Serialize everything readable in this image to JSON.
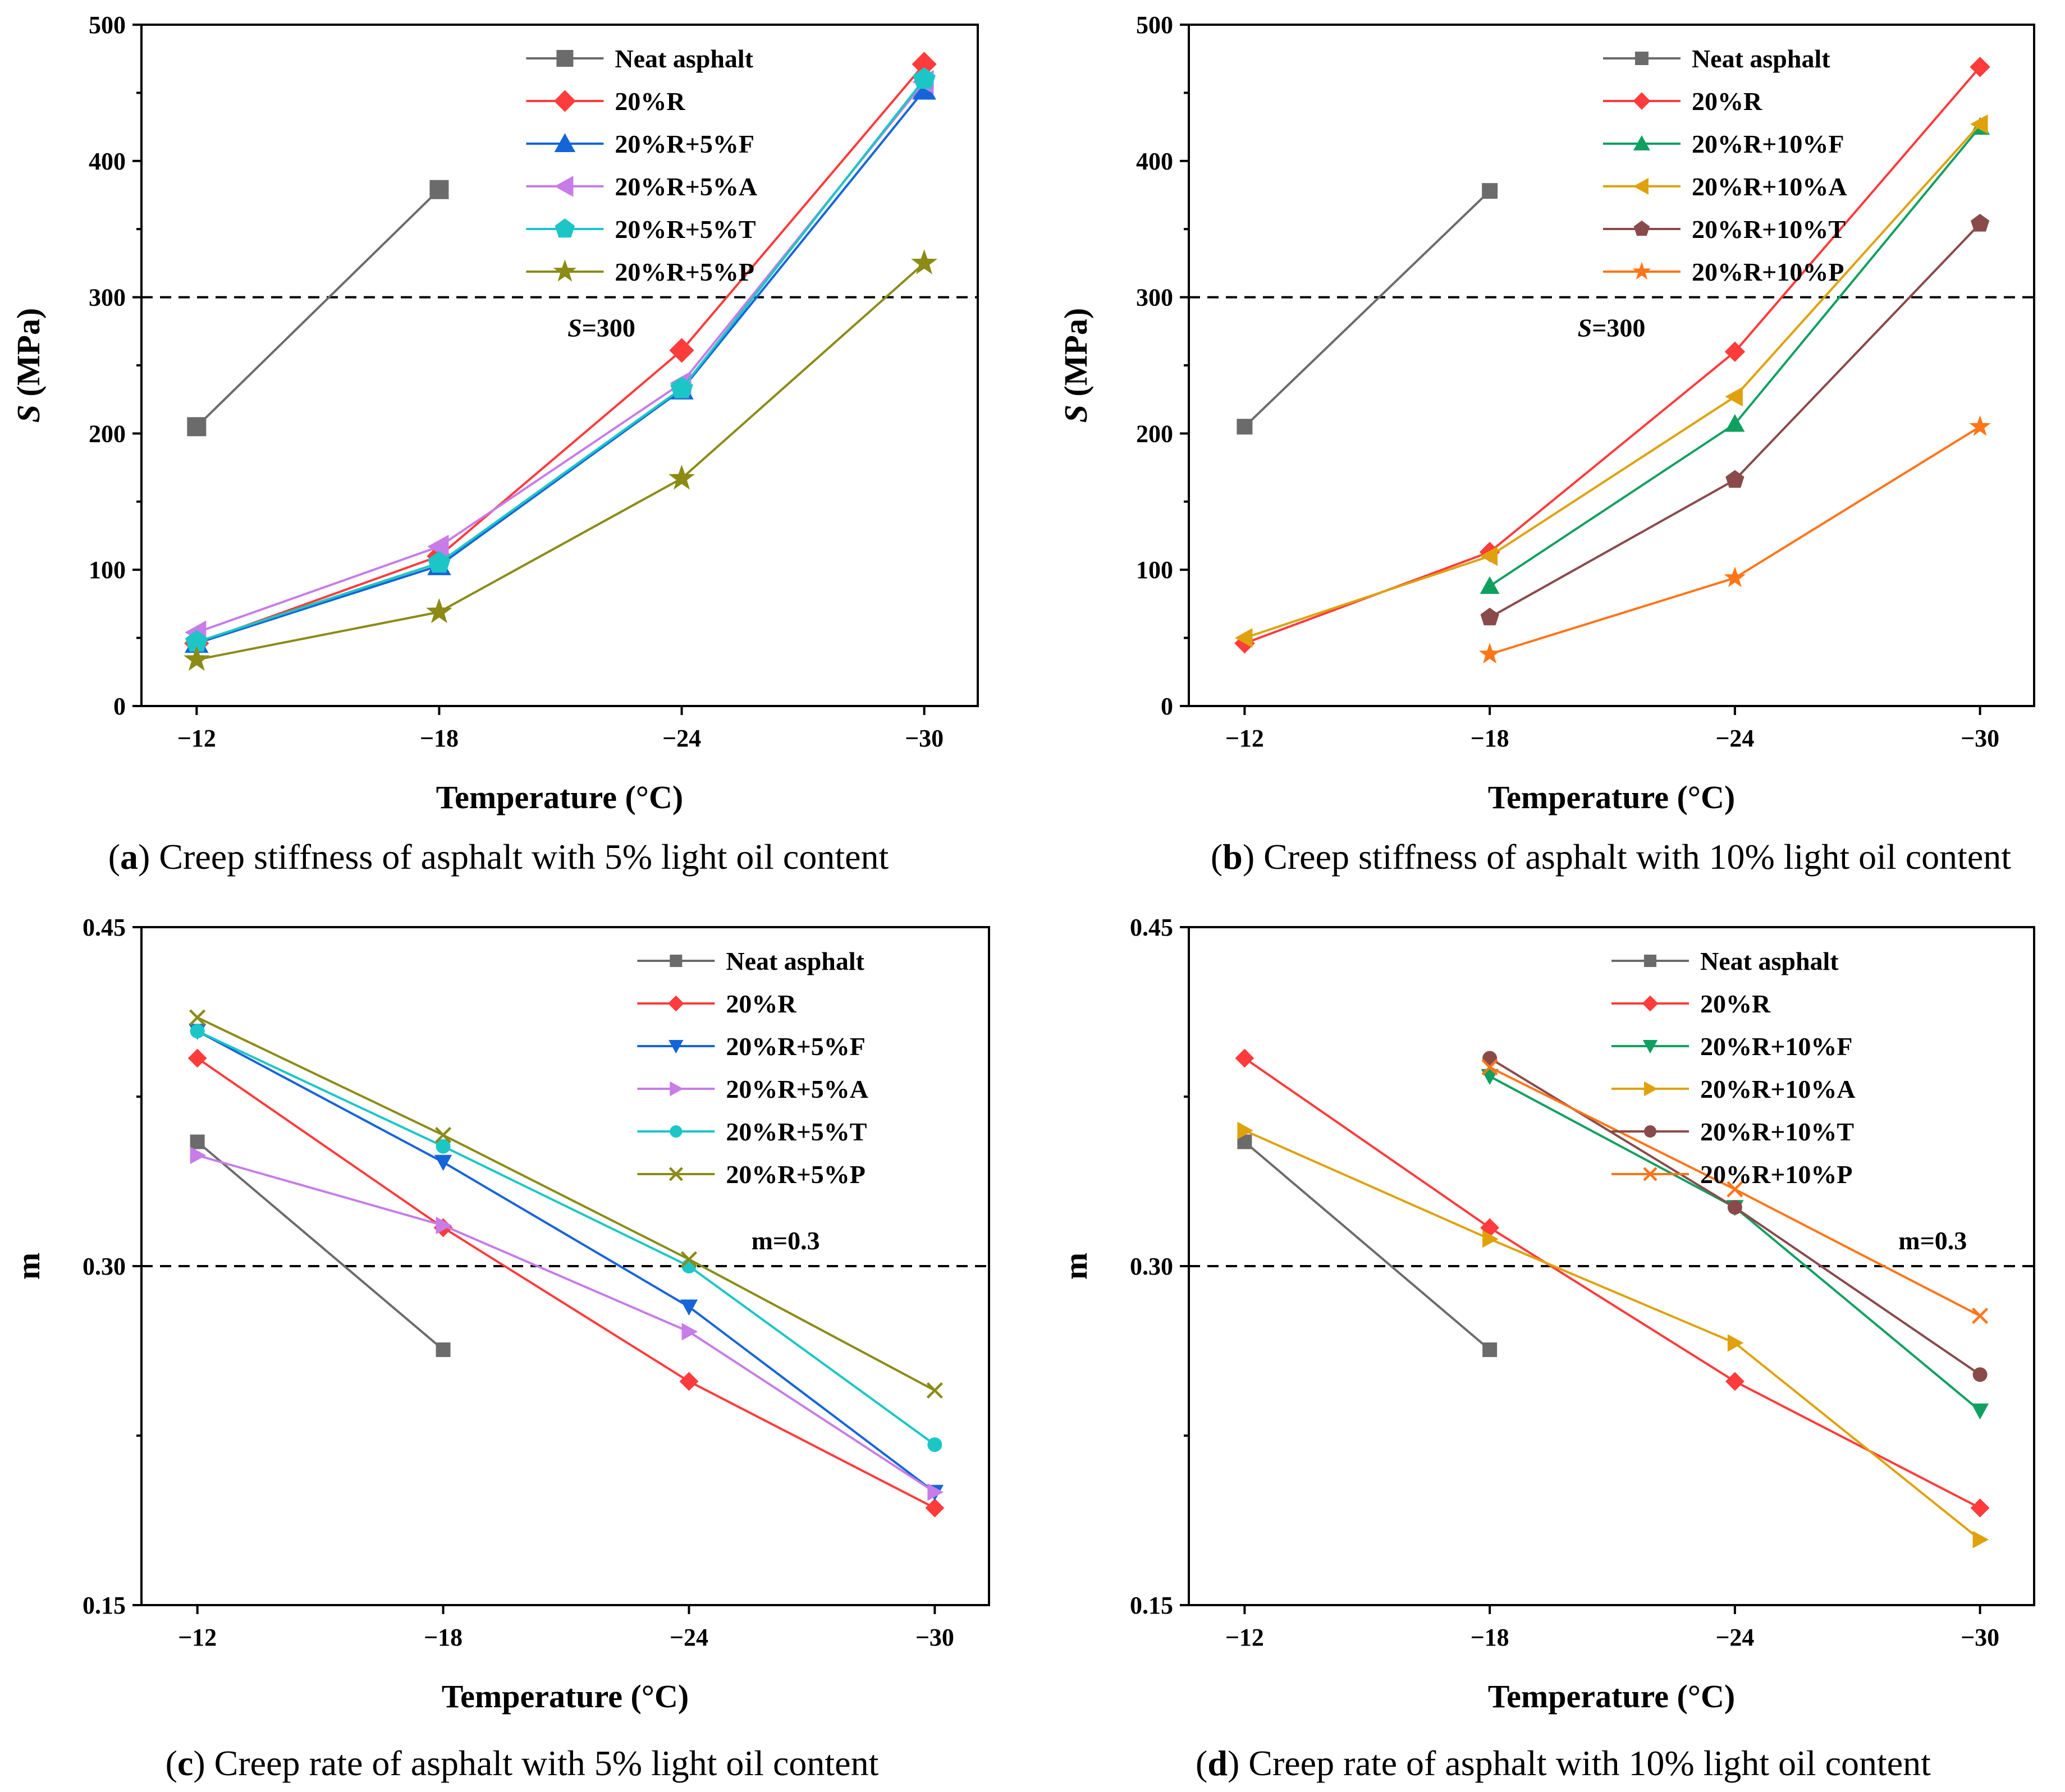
{
  "chart_data": [
    {
      "id": "a",
      "type": "line",
      "caption_letter": "a",
      "caption_text": " Creep stiffness of asphalt with 5% light oil content",
      "xlabel": "Temperature (°C)",
      "ylabel_italic": "S",
      "ylabel_rest": " (MPa)",
      "categories": [
        "−12",
        "−18",
        "−24",
        "−30"
      ],
      "yticks": [
        "0",
        "100",
        "200",
        "300",
        "400",
        "500"
      ],
      "ylim": [
        0,
        500
      ],
      "reference": {
        "value": 300,
        "label_italic": "S",
        "label_rest": "=300"
      },
      "legend_position": "top-right",
      "series": [
        {
          "name": "Neat asphalt",
          "color": "#6b6b6b",
          "marker": "square",
          "values": [
            205,
            379,
            null,
            null
          ]
        },
        {
          "name": "20%R",
          "color": "#ff3b3b",
          "marker": "diamond",
          "values": [
            46,
            110,
            261,
            471
          ]
        },
        {
          "name": "20%R+5%F",
          "color": "#1565d8",
          "marker": "triangle-up",
          "values": [
            46,
            103,
            232,
            452
          ]
        },
        {
          "name": "20%R+5%A",
          "color": "#c77ce8",
          "marker": "triangle-left",
          "values": [
            54,
            117,
            237,
            458
          ]
        },
        {
          "name": "20%R+5%T",
          "color": "#1cc6c6",
          "marker": "pentagon",
          "values": [
            47,
            105,
            233,
            460
          ]
        },
        {
          "name": "20%R+5%P",
          "color": "#8b8b16",
          "marker": "star",
          "values": [
            34,
            69,
            167,
            325
          ]
        }
      ]
    },
    {
      "id": "b",
      "type": "line",
      "caption_letter": "b",
      "caption_text": " Creep stiffness of asphalt with 10% light oil content",
      "xlabel": "Temperature (°C)",
      "ylabel_italic": "S",
      "ylabel_rest": " (MPa)",
      "categories": [
        "−12",
        "−18",
        "−24",
        "−30"
      ],
      "yticks": [
        "0",
        "100",
        "200",
        "300",
        "400",
        "500"
      ],
      "ylim": [
        0,
        500
      ],
      "reference": {
        "value": 300,
        "label_italic": "S",
        "label_rest": "=300"
      },
      "legend_position": "top-right",
      "series": [
        {
          "name": "Neat asphalt",
          "color": "#6b6b6b",
          "marker": "square",
          "values": [
            205,
            378,
            null,
            null
          ]
        },
        {
          "name": "20%R",
          "color": "#ff3b3b",
          "marker": "diamond",
          "values": [
            46,
            113,
            260,
            469
          ]
        },
        {
          "name": "20%R+10%F",
          "color": "#0fa060",
          "marker": "triangle-up",
          "values": [
            null,
            88,
            207,
            425
          ]
        },
        {
          "name": "20%R+10%A",
          "color": "#dfa20d",
          "marker": "triangle-left",
          "values": [
            50,
            110,
            227,
            427
          ]
        },
        {
          "name": "20%R+10%T",
          "color": "#8a4a4a",
          "marker": "pentagon",
          "values": [
            null,
            65,
            166,
            354
          ]
        },
        {
          "name": "20%R+10%P",
          "color": "#ff7518",
          "marker": "star",
          "values": [
            null,
            38,
            94,
            205
          ]
        }
      ]
    },
    {
      "id": "c",
      "type": "line",
      "caption_letter": "c",
      "caption_text": " Creep rate of asphalt with 5% light oil content",
      "xlabel": "Temperature (°C)",
      "ylabel": "m",
      "categories": [
        "−12",
        "−18",
        "−24",
        "−30"
      ],
      "yticks": [
        "0.15",
        "0.30",
        "0.45"
      ],
      "ylim": [
        0.15,
        0.45
      ],
      "reference": {
        "value": 0.3,
        "label": "m=0.3"
      },
      "legend_position": "top-right",
      "series": [
        {
          "name": "Neat asphalt",
          "color": "#6b6b6b",
          "marker": "square",
          "values": [
            0.355,
            0.263,
            null,
            null
          ]
        },
        {
          "name": "20%R",
          "color": "#ff3b3b",
          "marker": "diamond",
          "values": [
            0.392,
            0.317,
            0.249,
            0.193
          ]
        },
        {
          "name": "20%R+5%F",
          "color": "#1565d8",
          "marker": "triangle-down",
          "values": [
            0.404,
            0.346,
            0.282,
            0.2
          ]
        },
        {
          "name": "20%R+5%A",
          "color": "#c77ce8",
          "marker": "triangle-right",
          "values": [
            0.349,
            0.318,
            0.271,
            0.2
          ]
        },
        {
          "name": "20%R+5%T",
          "color": "#1cc6c6",
          "marker": "circle",
          "values": [
            0.404,
            0.353,
            0.3,
            0.221
          ]
        },
        {
          "name": "20%R+5%P",
          "color": "#8b8b16",
          "marker": "x",
          "values": [
            0.41,
            0.358,
            0.303,
            0.245
          ]
        }
      ]
    },
    {
      "id": "d",
      "type": "line",
      "caption_letter": "d",
      "caption_text": " Creep rate of asphalt with 10% light oil content",
      "xlabel": "Temperature (°C)",
      "ylabel": "m",
      "categories": [
        "−12",
        "−18",
        "−24",
        "−30"
      ],
      "yticks": [
        "0.15",
        "0.30",
        "0.45"
      ],
      "ylim": [
        0.15,
        0.45
      ],
      "reference": {
        "value": 0.3,
        "label": "m=0.3"
      },
      "legend_position": "top-right",
      "series": [
        {
          "name": "Neat asphalt",
          "color": "#6b6b6b",
          "marker": "square",
          "values": [
            0.355,
            0.263,
            null,
            null
          ]
        },
        {
          "name": "20%R",
          "color": "#ff3b3b",
          "marker": "diamond",
          "values": [
            0.392,
            0.317,
            0.249,
            0.193
          ]
        },
        {
          "name": "20%R+10%F",
          "color": "#0fa060",
          "marker": "triangle-down",
          "values": [
            null,
            0.384,
            0.326,
            0.236
          ]
        },
        {
          "name": "20%R+10%A",
          "color": "#dfa20d",
          "marker": "triangle-right",
          "values": [
            0.36,
            0.312,
            0.266,
            0.179
          ]
        },
        {
          "name": "20%R+10%T",
          "color": "#8a4a4a",
          "marker": "circle",
          "values": [
            null,
            0.392,
            0.326,
            0.252
          ]
        },
        {
          "name": "20%R+10%P",
          "color": "#ff7518",
          "marker": "x",
          "values": [
            null,
            0.388,
            0.334,
            0.278
          ]
        }
      ]
    }
  ]
}
